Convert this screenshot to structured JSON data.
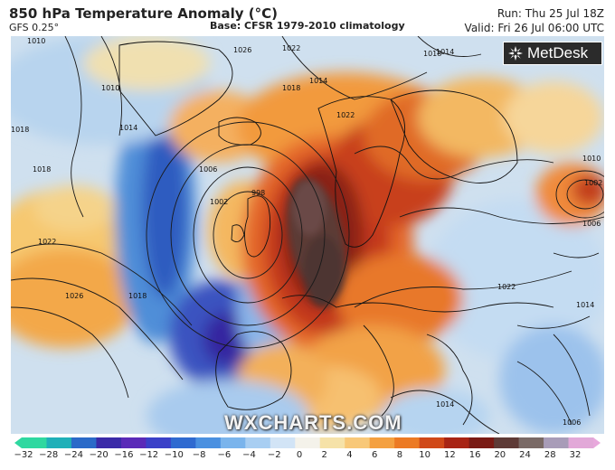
{
  "header": {
    "title": "850 hPa Temperature Anomaly (°C)",
    "model": "GFS 0.25°",
    "base": "Base: CFSR 1979-2010 climatology",
    "run": "Run: Thu 25 Jul 18Z",
    "valid": "Valid: Fri 26 Jul 06:00 UTC"
  },
  "brand": {
    "name": "MetDesk",
    "icon": "metdesk-logo-icon"
  },
  "watermark": "WXCHARTS.COM",
  "isobar_labels": [
    "1010",
    "1026",
    "1022",
    "1018",
    "1014",
    "1014",
    "1010",
    "1018",
    "1018",
    "1022",
    "1006",
    "1002",
    "998",
    "1022",
    "1026",
    "1018",
    "1022",
    "1014",
    "1010",
    "1002",
    "1006",
    "1014",
    "1014",
    "1006",
    "1018"
  ],
  "colorbar": {
    "ticks": [
      "−32",
      "−28",
      "−24",
      "−20",
      "−16",
      "−12",
      "−10",
      "−8",
      "−6",
      "−4",
      "−2",
      "0",
      "2",
      "4",
      "6",
      "8",
      "10",
      "12",
      "16",
      "20",
      "24",
      "28",
      "32"
    ],
    "colors": [
      "#2fd8a0",
      "#1fb0b8",
      "#2a6ac8",
      "#3a2aa8",
      "#5a2ab8",
      "#3a40c8",
      "#2f6ad0",
      "#4a90e0",
      "#7ab4ec",
      "#a8cef2",
      "#d2e4f6",
      "#f4f2ea",
      "#f6e2a8",
      "#f8c878",
      "#f4a040",
      "#ec7a24",
      "#d04818",
      "#a82414",
      "#7a1a14",
      "#5e3a36",
      "#7a6a66",
      "#a89cb8",
      "#e2a8d8"
    ]
  }
}
